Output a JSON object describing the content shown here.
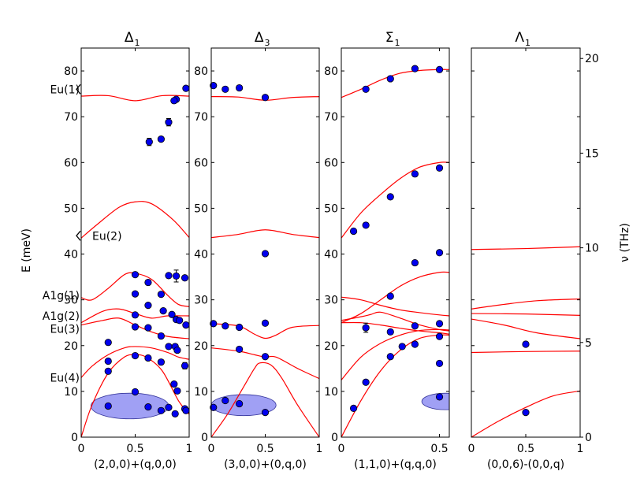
{
  "chart_data": {
    "type": "scatter",
    "figure_ylabel": "E (meV)",
    "right_ylabel": "ν (THz)",
    "ylim": [
      0,
      85
    ],
    "right_ylim_thz": [
      0,
      20.55
    ],
    "yticks": [
      0,
      10,
      20,
      30,
      40,
      50,
      60,
      70,
      80
    ],
    "right_yticks_thz": [
      0,
      5,
      10,
      15,
      20
    ],
    "line_color": "#ff0000",
    "marker_color": "#0000ee",
    "ellipse_color": "#6666ee",
    "side_labels": [
      {
        "text": "Eu(1)",
        "e": 76,
        "marker": true
      },
      {
        "text": "Eu(2)",
        "e": 44,
        "marker": true
      },
      {
        "text": "A1g(1)",
        "e": 31
      },
      {
        "text": "A1g(2)",
        "e": 26.5
      },
      {
        "text": "Eu(3)",
        "e": 23.7
      },
      {
        "text": "Eu(4)",
        "e": 13
      }
    ],
    "panels": [
      {
        "title_main": "Δ",
        "title_sub": "1",
        "xlabel": "(2,0,0)+(q,0,0)",
        "xlim": [
          0,
          1
        ],
        "xticks": [
          0,
          0.5,
          1
        ],
        "series": [
          {
            "name": "m1",
            "x": [
              0,
              0.25,
              0.5,
              0.75,
              1
            ],
            "y": [
              74.5,
              74.6,
              73.5,
              74.6,
              74.5
            ]
          },
          {
            "name": "m2",
            "x": [
              1,
              0.85,
              0.65,
              0.5,
              0.35,
              0.15,
              0
            ],
            "y": [
              43.6,
              47.5,
              51,
              51.4,
              50.2,
              46.5,
              43.5
            ]
          },
          {
            "name": "m3",
            "x": [
              0,
              0.1,
              0.25,
              0.4,
              0.5,
              0.65,
              0.8,
              0.9,
              1
            ],
            "y": [
              30.5,
              30,
              32.5,
              35.5,
              35.8,
              34.5,
              31,
              29,
              28.5
            ]
          },
          {
            "name": "m4",
            "x": [
              0,
              0.2,
              0.35,
              0.5,
              0.65,
              0.8,
              1
            ],
            "y": [
              25,
              27.5,
              28,
              27,
              26,
              26.5,
              26.5
            ]
          },
          {
            "name": "m5",
            "x": [
              0,
              0.2,
              0.35,
              0.5,
              0.65,
              0.8,
              1
            ],
            "y": [
              24.5,
              25.5,
              26,
              24.5,
              23,
              22,
              21.5
            ]
          },
          {
            "name": "m6",
            "x": [
              0,
              0.1,
              0.25,
              0.4,
              0.5,
              0.65,
              0.8,
              0.9,
              1
            ],
            "y": [
              13,
              15.5,
              18,
              19.5,
              19.8,
              19.5,
              18.5,
              17.5,
              17
            ]
          },
          {
            "name": "m7",
            "x": [
              0,
              0.1,
              0.25,
              0.4,
              0.5,
              0.6,
              0.75,
              0.9,
              1
            ],
            "y": [
              0,
              7,
              14,
              17.5,
              18,
              17.5,
              14.5,
              8,
              5
            ]
          }
        ],
        "points": [
          {
            "q": 0.97,
            "e": 76.2
          },
          {
            "q": 0.88,
            "e": 73.8
          },
          {
            "q": 0.86,
            "e": 73.5
          },
          {
            "q": 0.81,
            "e": 68.8,
            "err": 0.8
          },
          {
            "q": 0.74,
            "e": 65.1
          },
          {
            "q": 0.63,
            "e": 64.5,
            "err": 0.8
          },
          {
            "q": 0.5,
            "e": 35.5
          },
          {
            "q": 0.62,
            "e": 33.8
          },
          {
            "q": 0.81,
            "e": 35.3
          },
          {
            "q": 0.88,
            "e": 35.2,
            "err": 1.3
          },
          {
            "q": 0.96,
            "e": 34.8
          },
          {
            "q": 0.5,
            "e": 31.3
          },
          {
            "q": 0.74,
            "e": 31.2
          },
          {
            "q": 0.62,
            "e": 28.8
          },
          {
            "q": 0.76,
            "e": 27.6
          },
          {
            "q": 0.84,
            "e": 26.8
          },
          {
            "q": 0.88,
            "e": 25.7
          },
          {
            "q": 0.91,
            "e": 25.5
          },
          {
            "q": 0.97,
            "e": 24.5
          },
          {
            "q": 0.5,
            "e": 26.7
          },
          {
            "q": 0.5,
            "e": 24.1
          },
          {
            "q": 0.62,
            "e": 23.9
          },
          {
            "q": 0.74,
            "e": 22.1
          },
          {
            "q": 0.25,
            "e": 20.7
          },
          {
            "q": 0.81,
            "e": 19.8
          },
          {
            "q": 0.87,
            "e": 19.8
          },
          {
            "q": 0.89,
            "e": 19.0
          },
          {
            "q": 0.5,
            "e": 17.8
          },
          {
            "q": 0.62,
            "e": 17.3
          },
          {
            "q": 0.25,
            "e": 16.6
          },
          {
            "q": 0.74,
            "e": 16.4
          },
          {
            "q": 0.96,
            "e": 15.6,
            "err": 0.7
          },
          {
            "q": 0.25,
            "e": 14.4
          },
          {
            "q": 0.86,
            "e": 11.6
          },
          {
            "q": 0.89,
            "e": 10.1
          },
          {
            "q": 0.5,
            "e": 9.9
          },
          {
            "q": 0.25,
            "e": 6.8
          },
          {
            "q": 0.62,
            "e": 6.6
          },
          {
            "q": 0.81,
            "e": 6.5
          },
          {
            "q": 0.74,
            "e": 5.8
          },
          {
            "q": 0.87,
            "e": 5.1
          },
          {
            "q": 0.96,
            "e": 6.2
          },
          {
            "q": 0.97,
            "e": 5.8
          }
        ],
        "ellipse": {
          "cq": 0.45,
          "ce": 6.8,
          "rq": 0.36,
          "re": 2.8
        }
      },
      {
        "title_main": "Δ",
        "title_sub": "3",
        "xlabel": "(3,0,0)+(0,q,0)",
        "xlim": [
          0,
          1
        ],
        "xticks": [
          0,
          0.5,
          1
        ],
        "series": [
          {
            "name": "m1",
            "x": [
              0,
              0.25,
              0.5,
              0.75,
              1
            ],
            "y": [
              74.4,
              74.3,
              73.6,
              74.2,
              74.4
            ]
          },
          {
            "name": "m2",
            "x": [
              0,
              0.25,
              0.5,
              0.75,
              1
            ],
            "y": [
              43.6,
              44.3,
              45.3,
              44.3,
              43.6
            ]
          },
          {
            "name": "m3",
            "x": [
              0,
              0.25,
              0.4,
              0.5,
              0.6,
              0.75,
              1
            ],
            "y": [
              24.8,
              24.3,
              22.5,
              21.6,
              22.3,
              24,
              24.4
            ]
          },
          {
            "name": "m4",
            "x": [
              0,
              0.25,
              0.4,
              0.5,
              0.6,
              0.8,
              1
            ],
            "y": [
              19.5,
              18.8,
              18,
              17.5,
              17.5,
              15,
              12.8
            ]
          },
          {
            "name": "m5",
            "x": [
              0,
              0.15,
              0.3,
              0.4,
              0.45,
              0.55,
              0.65,
              0.8,
              1
            ],
            "y": [
              0,
              5,
              11,
              15,
              16.2,
              15.8,
              13,
              7,
              0
            ]
          }
        ],
        "points": [
          {
            "q": 0.02,
            "e": 76.8
          },
          {
            "q": 0.13,
            "e": 76.0
          },
          {
            "q": 0.26,
            "e": 76.3
          },
          {
            "q": 0.5,
            "e": 74.2
          },
          {
            "q": 0.5,
            "e": 40.1
          },
          {
            "q": 0.02,
            "e": 24.8
          },
          {
            "q": 0.13,
            "e": 24.3
          },
          {
            "q": 0.26,
            "e": 24.0
          },
          {
            "q": 0.5,
            "e": 24.9
          },
          {
            "q": 0.26,
            "e": 19.2
          },
          {
            "q": 0.5,
            "e": 17.6
          },
          {
            "q": 0.13,
            "e": 8.0
          },
          {
            "q": 0.26,
            "e": 7.3
          },
          {
            "q": 0.02,
            "e": 6.5
          },
          {
            "q": 0.5,
            "e": 5.4
          }
        ],
        "ellipse": {
          "cq": 0.3,
          "ce": 7.0,
          "rq": 0.3,
          "re": 2.3
        }
      },
      {
        "title_main": "Σ",
        "title_sub": "1",
        "xlabel": "(1,1,0)+(q,q,0)",
        "xlim": [
          0,
          0.55
        ],
        "xticks": [
          0,
          0.5
        ],
        "series": [
          {
            "name": "m1",
            "x": [
              0,
              0.1,
              0.2,
              0.3,
              0.4,
              0.5,
              0.55
            ],
            "y": [
              74.2,
              76,
              78,
              79.5,
              80.1,
              80.3,
              80.3
            ]
          },
          {
            "name": "m2",
            "x": [
              0,
              0.1,
              0.2,
              0.3,
              0.4,
              0.5,
              0.55
            ],
            "y": [
              43.5,
              49,
              53,
              56.5,
              59,
              60,
              60
            ]
          },
          {
            "name": "m3",
            "x": [
              0,
              0.1,
              0.2,
              0.3,
              0.4,
              0.5,
              0.55
            ],
            "y": [
              25,
              27,
              30,
              33,
              35,
              36,
              36
            ]
          },
          {
            "name": "m4",
            "x": [
              0,
              0.1,
              0.2,
              0.3,
              0.4,
              0.5,
              0.55
            ],
            "y": [
              30.6,
              30,
              28.8,
              27.8,
              27.2,
              26.7,
              26.5
            ]
          },
          {
            "name": "m5",
            "x": [
              0,
              0.1,
              0.15,
              0.2,
              0.3,
              0.4,
              0.5,
              0.55
            ],
            "y": [
              25.5,
              26.3,
              26.8,
              27.3,
              26,
              24.5,
              23.5,
              23.2
            ]
          },
          {
            "name": "m6",
            "x": [
              0,
              0.1,
              0.2,
              0.3,
              0.4,
              0.5,
              0.55
            ],
            "y": [
              25,
              25,
              24.5,
              23.8,
              23.2,
              22.8,
              22.5
            ]
          },
          {
            "name": "m7",
            "x": [
              0,
              0.1,
              0.2,
              0.3,
              0.4,
              0.5,
              0.55
            ],
            "y": [
              12.5,
              17.5,
              20.5,
              22.3,
              23.3,
              23.5,
              23.4
            ]
          },
          {
            "name": "m8",
            "x": [
              0,
              0.1,
              0.2,
              0.3,
              0.4,
              0.5,
              0.55
            ],
            "y": [
              0,
              8,
              14.5,
              19,
              21.6,
              22.3,
              22.3
            ]
          }
        ],
        "points": [
          {
            "q": 0.375,
            "e": 80.5
          },
          {
            "q": 0.5,
            "e": 80.3
          },
          {
            "q": 0.25,
            "e": 78.3
          },
          {
            "q": 0.125,
            "e": 76.0
          },
          {
            "q": 0.5,
            "e": 58.8
          },
          {
            "q": 0.375,
            "e": 57.5
          },
          {
            "q": 0.25,
            "e": 52.5
          },
          {
            "q": 0.125,
            "e": 46.3
          },
          {
            "q": 0.0625,
            "e": 45.0
          },
          {
            "q": 0.5,
            "e": 40.3
          },
          {
            "q": 0.375,
            "e": 38.1
          },
          {
            "q": 0.25,
            "e": 30.8
          },
          {
            "q": 0.375,
            "e": 24.3
          },
          {
            "q": 0.5,
            "e": 24.8
          },
          {
            "q": 0.125,
            "e": 23.9,
            "err": 1.0
          },
          {
            "q": 0.25,
            "e": 23.0
          },
          {
            "q": 0.5,
            "e": 22.0
          },
          {
            "q": 0.375,
            "e": 20.3
          },
          {
            "q": 0.31,
            "e": 19.8
          },
          {
            "q": 0.25,
            "e": 17.6
          },
          {
            "q": 0.5,
            "e": 16.1
          },
          {
            "q": 0.125,
            "e": 12.0
          },
          {
            "q": 0.5,
            "e": 8.8
          },
          {
            "q": 0.0625,
            "e": 6.3
          }
        ],
        "ellipse": {
          "cq": 0.53,
          "ce": 7.8,
          "rq": 0.12,
          "re": 1.8
        }
      },
      {
        "title_main": "Λ",
        "title_sub": "1",
        "xlabel": "(0,0,6)-(0,0,q)",
        "xlim": [
          0,
          1
        ],
        "xticks": [
          0,
          0.5,
          1
        ],
        "series": [
          {
            "name": "m1",
            "x": [
              0,
              0.5,
              1
            ],
            "y": [
              41,
              41.2,
              41.6
            ]
          },
          {
            "name": "m2",
            "x": [
              0,
              0.3,
              0.6,
              1
            ],
            "y": [
              28,
              29,
              29.8,
              30.2
            ]
          },
          {
            "name": "m3",
            "x": [
              0,
              0.5,
              1
            ],
            "y": [
              27,
              26.9,
              26.6
            ]
          },
          {
            "name": "m4",
            "x": [
              0,
              0.3,
              0.6,
              1
            ],
            "y": [
              25.8,
              24.5,
              22.8,
              21.5
            ]
          },
          {
            "name": "m5",
            "x": [
              0,
              0.5,
              1
            ],
            "y": [
              18.5,
              18.7,
              18.8
            ]
          },
          {
            "name": "m6",
            "x": [
              0,
              0.25,
              0.5,
              0.75,
              1
            ],
            "y": [
              0,
              3.5,
              6.5,
              9,
              10.1
            ]
          }
        ],
        "points": [
          {
            "q": 0.5,
            "e": 20.3
          },
          {
            "q": 0.5,
            "e": 5.4
          }
        ]
      }
    ]
  }
}
